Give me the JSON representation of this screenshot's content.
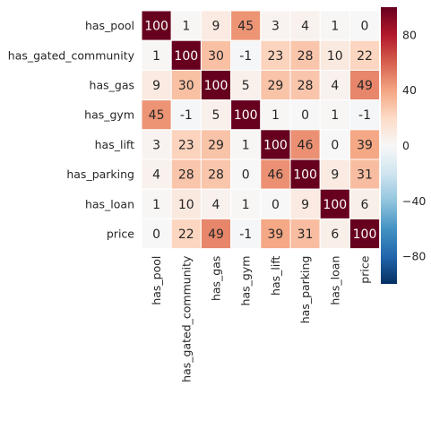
{
  "chart_data": {
    "type": "heatmap",
    "rows": [
      "has_pool",
      "has_gated_community",
      "has_gas",
      "has_gym",
      "has_lift",
      "has_parking",
      "has_loan",
      "price"
    ],
    "columns": [
      "has_pool",
      "has_gated_community",
      "has_gas",
      "has_gym",
      "has_lift",
      "has_parking",
      "has_loan",
      "price"
    ],
    "values": [
      [
        100,
        1,
        9,
        45,
        3,
        4,
        1,
        0
      ],
      [
        1,
        100,
        30,
        -1,
        23,
        28,
        10,
        22
      ],
      [
        9,
        30,
        100,
        5,
        29,
        28,
        4,
        49
      ],
      [
        45,
        -1,
        5,
        100,
        1,
        0,
        1,
        -1
      ],
      [
        3,
        23,
        29,
        1,
        100,
        46,
        0,
        39
      ],
      [
        4,
        28,
        28,
        0,
        46,
        100,
        9,
        31
      ],
      [
        1,
        10,
        4,
        1,
        0,
        9,
        100,
        6
      ],
      [
        0,
        22,
        49,
        -1,
        39,
        31,
        6,
        100
      ]
    ],
    "value_range": [
      -100,
      100
    ],
    "colorbar": {
      "ticks": [
        80,
        40,
        0,
        -40,
        -80
      ],
      "tick_labels": [
        "80",
        "40",
        "0",
        "−40",
        "−80"
      ]
    },
    "colormap": "RdBu_r",
    "annotated": true,
    "cell_gridlines": true
  }
}
